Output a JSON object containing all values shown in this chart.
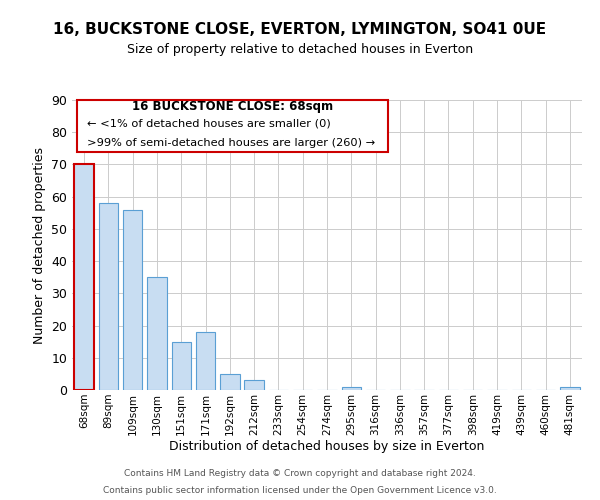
{
  "title": "16, BUCKSTONE CLOSE, EVERTON, LYMINGTON, SO41 0UE",
  "subtitle": "Size of property relative to detached houses in Everton",
  "xlabel": "Distribution of detached houses by size in Everton",
  "ylabel": "Number of detached properties",
  "bar_color": "#c8ddf2",
  "bar_edge_color": "#5a9fd4",
  "categories": [
    "68sqm",
    "89sqm",
    "109sqm",
    "130sqm",
    "151sqm",
    "171sqm",
    "192sqm",
    "212sqm",
    "233sqm",
    "254sqm",
    "274sqm",
    "295sqm",
    "316sqm",
    "336sqm",
    "357sqm",
    "377sqm",
    "398sqm",
    "419sqm",
    "439sqm",
    "460sqm",
    "481sqm"
  ],
  "values": [
    70,
    58,
    56,
    35,
    15,
    18,
    5,
    3,
    0,
    0,
    0,
    1,
    0,
    0,
    0,
    0,
    0,
    0,
    0,
    0,
    1
  ],
  "highlight_index": 0,
  "highlight_bar_edge_color": "#cc0000",
  "ylim": [
    0,
    90
  ],
  "yticks": [
    0,
    10,
    20,
    30,
    40,
    50,
    60,
    70,
    80,
    90
  ],
  "annotation_title": "16 BUCKSTONE CLOSE: 68sqm",
  "annotation_line1": "← <1% of detached houses are smaller (0)",
  "annotation_line2": ">99% of semi-detached houses are larger (260) →",
  "annotation_box_edge": "#cc0000",
  "footer1": "Contains HM Land Registry data © Crown copyright and database right 2024.",
  "footer2": "Contains public sector information licensed under the Open Government Licence v3.0."
}
